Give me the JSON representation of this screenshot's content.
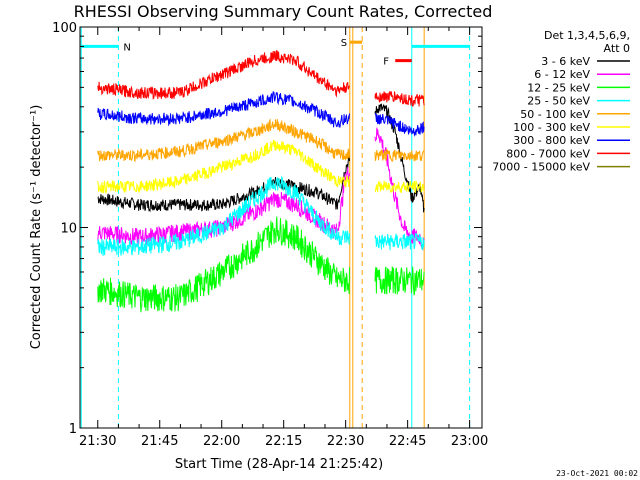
{
  "chart_data": {
    "type": "line",
    "title": "RHESSI Observing Summary Count Rates, Corrected",
    "xlabel": "Start Time (28-Apr-14 21:25:42)",
    "ylabel": "Corrected Count Rate (s⁻¹ detector⁻¹)",
    "yscale": "log",
    "xlim": [
      "21:25:42",
      "23:03:00"
    ],
    "ylim": [
      1,
      100
    ],
    "x_ticks": [
      "21:30",
      "21:45",
      "22:00",
      "22:15",
      "22:30",
      "22:45",
      "23:00"
    ],
    "y_ticks": [
      "1",
      "10",
      "100"
    ],
    "legend_header": [
      "Det 1,3,4,5,6,9,",
      "Att 0"
    ],
    "legend_position": "right",
    "series": [
      {
        "name": "3 - 6 keV",
        "color": "#000000",
        "x": [
          "21:30",
          "21:40",
          "21:50",
          "22:00",
          "22:08",
          "22:13",
          "22:18",
          "22:23",
          "22:28",
          "22:30",
          "22:38",
          "22:40",
          "22:42",
          "22:44",
          "22:46",
          "22:48",
          "22:49"
        ],
        "y": [
          14,
          13,
          13,
          13,
          15,
          17,
          16,
          15,
          13,
          20,
          40,
          38,
          30,
          20,
          14,
          16,
          12
        ]
      },
      {
        "name": "6 - 12 keV",
        "color": "#ff00ff",
        "x": [
          "21:30",
          "21:40",
          "21:50",
          "22:00",
          "22:08",
          "22:13",
          "22:18",
          "22:23",
          "22:28",
          "22:30",
          "22:38",
          "22:40",
          "22:42",
          "22:44",
          "22:46",
          "22:48",
          "22:49"
        ],
        "y": [
          9.5,
          9,
          9.5,
          10,
          12,
          14,
          13,
          11,
          9.5,
          18,
          30,
          22,
          14,
          10,
          9,
          9,
          8
        ]
      },
      {
        "name": "12 - 25 keV",
        "color": "#00ff00",
        "x": [
          "21:30",
          "21:40",
          "21:50",
          "22:00",
          "22:08",
          "22:13",
          "22:18",
          "22:23",
          "22:28",
          "22:30",
          "22:38",
          "22:42",
          "22:46",
          "22:49"
        ],
        "y": [
          5,
          4.5,
          4.5,
          6,
          8,
          10,
          9,
          7,
          5.5,
          5.5,
          5.5,
          5.5,
          5.5,
          5.5
        ]
      },
      {
        "name": "25 - 50 keV",
        "color": "#00ffff",
        "x": [
          "21:30",
          "21:40",
          "21:50",
          "22:00",
          "22:08",
          "22:13",
          "22:18",
          "22:23",
          "22:28",
          "22:30",
          "22:38",
          "22:42",
          "22:46",
          "22:49"
        ],
        "y": [
          8,
          8,
          8.5,
          10,
          14,
          17,
          15,
          11,
          9,
          9,
          8.5,
          8.5,
          8.5,
          8.5
        ]
      },
      {
        "name": "50 - 100 keV",
        "color": "#ffa500",
        "x": [
          "21:30",
          "21:40",
          "21:50",
          "22:00",
          "22:08",
          "22:13",
          "22:18",
          "22:23",
          "22:28",
          "22:30",
          "22:38",
          "22:42",
          "22:46",
          "22:49"
        ],
        "y": [
          23,
          23,
          24,
          27,
          30,
          33,
          30,
          27,
          23,
          23,
          23,
          23,
          23,
          23
        ]
      },
      {
        "name": "100 - 300 keV",
        "color": "#ffff00",
        "x": [
          "21:30",
          "21:40",
          "21:50",
          "22:00",
          "22:08",
          "22:13",
          "22:18",
          "22:23",
          "22:28",
          "22:30",
          "22:38",
          "22:42",
          "22:46",
          "22:49"
        ],
        "y": [
          16,
          16,
          17,
          20,
          23,
          26,
          24,
          20,
          17,
          17,
          16,
          16,
          16,
          16
        ]
      },
      {
        "name": "300 - 800 keV",
        "color": "#0000ff",
        "x": [
          "21:30",
          "21:40",
          "21:50",
          "22:00",
          "22:08",
          "22:13",
          "22:18",
          "22:23",
          "22:28",
          "22:30",
          "22:38",
          "22:42",
          "22:46",
          "22:49"
        ],
        "y": [
          37,
          35,
          35,
          38,
          42,
          45,
          42,
          38,
          33,
          35,
          35,
          33,
          30,
          32
        ]
      },
      {
        "name": "800 - 7000 keV",
        "color": "#ff0000",
        "x": [
          "21:30",
          "21:40",
          "21:50",
          "22:00",
          "22:08",
          "22:13",
          "22:18",
          "22:23",
          "22:28",
          "22:30",
          "22:38",
          "22:42",
          "22:46",
          "22:49"
        ],
        "y": [
          50,
          47,
          47,
          58,
          68,
          72,
          68,
          56,
          48,
          50,
          45,
          45,
          43,
          43
        ]
      },
      {
        "name": "7000 - 15000 keV",
        "color": "#808000",
        "x": [],
        "y": []
      }
    ],
    "flags": [
      {
        "label": "N",
        "color": "#00ffff",
        "segments": [
          [
            "21:26",
            "21:35"
          ],
          [
            "22:46",
            "23:00"
          ]
        ],
        "level": 80
      },
      {
        "label": "S",
        "color": "#ffa500",
        "segments": [
          [
            "22:31",
            "22:34"
          ]
        ],
        "level": 84
      },
      {
        "label": "F",
        "color": "#ff0000",
        "segments": [
          [
            "22:42",
            "22:46"
          ]
        ],
        "level": 68
      }
    ],
    "vertical_lines": [
      {
        "x": "21:26",
        "color": "#00ffff",
        "style": "solid"
      },
      {
        "x": "21:35",
        "color": "#00ffff",
        "style": "dashed"
      },
      {
        "x": "22:31",
        "color": "#ffa500",
        "style": "solid"
      },
      {
        "x": "22:31",
        "color": "#ffa500",
        "style": "solid"
      },
      {
        "x": "22:34",
        "color": "#ffa500",
        "style": "dashed"
      },
      {
        "x": "22:46",
        "color": "#00ffff",
        "style": "solid"
      },
      {
        "x": "22:49",
        "color": "#ffa500",
        "style": "solid"
      },
      {
        "x": "23:00",
        "color": "#00ffff",
        "style": "dashed"
      }
    ],
    "gaps": [
      [
        "22:31",
        "22:37"
      ]
    ],
    "timestamp": "23-Oct-2021 00:02"
  }
}
